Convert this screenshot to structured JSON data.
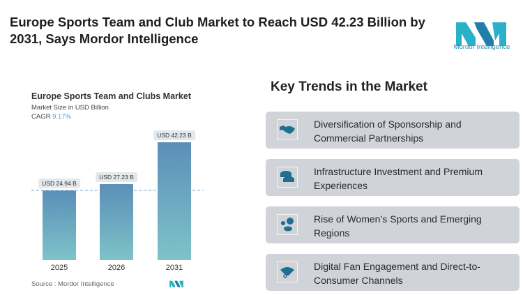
{
  "header": {
    "title": "Europe Sports Team and Club Market to Reach USD 42.23 Billion by 2031, Says Mordor Intelligence",
    "logo_text": "Mordor Intelligence"
  },
  "chart_data": {
    "type": "bar",
    "title": "Europe Sports Team and Clubs Market",
    "subtitle": "Market Size in USD Billion",
    "cagr_label": "CAGR",
    "cagr_value": "9.17%",
    "categories": [
      "2025",
      "2026",
      "2031"
    ],
    "values": [
      24.94,
      27.23,
      42.23
    ],
    "data_labels": [
      "USD 24.94 B",
      "USD 27.23 B",
      "USD 42.23 B"
    ],
    "source": "Source :  Mordor Intelligence",
    "colors": {
      "top": "#5b8fb8",
      "bottom": "#7ec3c9"
    }
  },
  "trends": {
    "title": "Key Trends in the Market",
    "items": [
      {
        "label": "Diversification of Sponsorship and Commercial Partnerships",
        "icon": "handshake-icon"
      },
      {
        "label": "Infrastructure Investment and Premium Experiences",
        "icon": "stadium-icon"
      },
      {
        "label": "Rise of Women’s Sports and Emerging Regions",
        "icon": "sports-balls-icon"
      },
      {
        "label": "Digital Fan Engagement and Direct-to-Consumer Channels",
        "icon": "fan-icon"
      }
    ]
  }
}
